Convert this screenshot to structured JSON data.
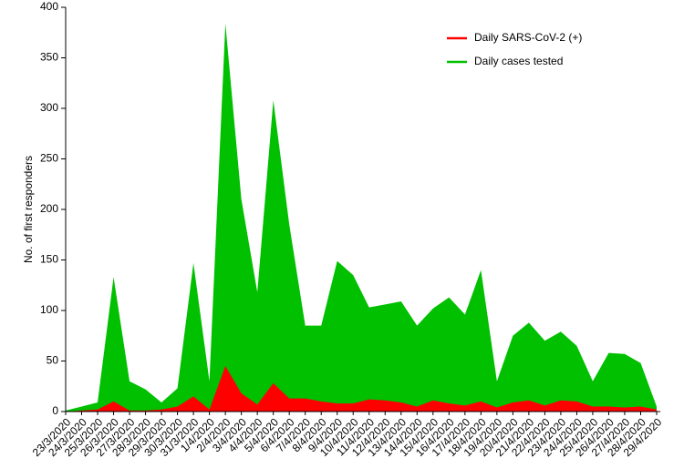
{
  "chart_data": {
    "type": "area",
    "y_label": "No. of first responders",
    "categories": [
      "23/3/2020",
      "24/3/2020",
      "25/3/2020",
      "26/3/2020",
      "27/3/2020",
      "28/3/2020",
      "29/3/2020",
      "30/3/2020",
      "31/3/2020",
      "1/4/2020",
      "2/4/2020",
      "3/4/2020",
      "4/4/2020",
      "5/4/2020",
      "6/4/2020",
      "7/4/2020",
      "8/4/2020",
      "9/4/2020",
      "10/4/2020",
      "11/4/2020",
      "12/4/2020",
      "13/4/2020",
      "14/4/2020",
      "15/4/2020",
      "16/4/2020",
      "17/4/2020",
      "18/4/2020",
      "19/4/2020",
      "20/4/2020",
      "21/4/2020",
      "22/4/2020",
      "23/4/2020",
      "24/4/2020",
      "25/4/2020",
      "26/4/2020",
      "27/4/2020",
      "28/4/2020",
      "29/4/2020"
    ],
    "series": [
      {
        "name": "Daily cases tested",
        "color": "#00c000",
        "values": [
          1,
          5,
          9,
          133,
          30,
          22,
          9,
          23,
          147,
          30,
          384,
          210,
          118,
          308,
          185,
          85,
          85,
          149,
          135,
          103,
          106,
          109,
          85,
          102,
          113,
          96,
          140,
          30,
          75,
          88,
          70,
          79,
          65,
          30,
          58,
          57,
          48,
          5
        ]
      },
      {
        "name": "Daily SARS-CoV-2 (+)",
        "color": "#ff0000",
        "values": [
          0,
          1,
          2,
          10,
          1,
          1,
          2,
          5,
          15,
          2,
          45,
          18,
          7,
          28,
          13,
          13,
          10,
          8,
          8,
          12,
          11,
          9,
          5,
          11,
          8,
          6,
          10,
          4,
          9,
          11,
          6,
          11,
          10,
          5,
          5,
          4,
          5,
          2
        ]
      }
    ],
    "legend_order": [
      1,
      0
    ],
    "ylim": [
      0,
      400
    ],
    "yticks": [
      0,
      50,
      100,
      150,
      200,
      250,
      300,
      350,
      400
    ],
    "legend": "upper right"
  }
}
